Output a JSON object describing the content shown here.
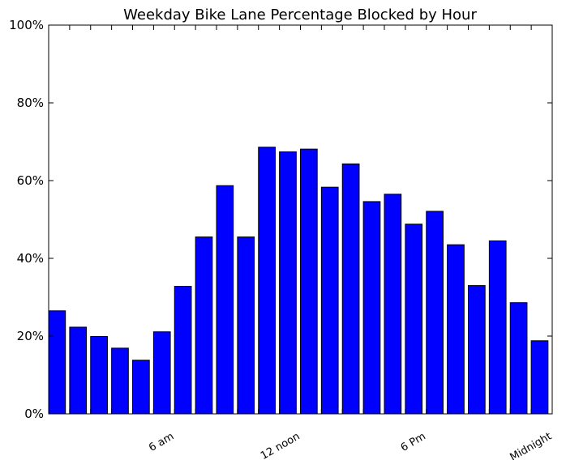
{
  "chart_data": {
    "type": "bar",
    "title": "Weekday Bike Lane Percentage Blocked by Hour",
    "xlabel": "",
    "ylabel": "",
    "ylim": [
      0,
      100
    ],
    "yticks": [
      {
        "value": 0,
        "label": "0%"
      },
      {
        "value": 20,
        "label": "20%"
      },
      {
        "value": 40,
        "label": "40%"
      },
      {
        "value": 60,
        "label": "60%"
      },
      {
        "value": 80,
        "label": "80%"
      },
      {
        "value": 100,
        "label": "100%"
      }
    ],
    "xticks": [
      {
        "hour": 6,
        "label": "6 am"
      },
      {
        "hour": 12,
        "label": "12 noon"
      },
      {
        "hour": 18,
        "label": "6 Pm"
      },
      {
        "hour": 24,
        "label": "Midnight"
      }
    ],
    "hours": [
      0,
      1,
      2,
      3,
      4,
      5,
      6,
      7,
      8,
      9,
      10,
      11,
      12,
      13,
      14,
      15,
      16,
      17,
      18,
      19,
      20,
      21,
      22,
      23
    ],
    "values": [
      26.5,
      22.3,
      19.9,
      16.9,
      13.8,
      21.1,
      32.8,
      45.5,
      58.7,
      45.5,
      68.6,
      67.4,
      68.1,
      58.3,
      64.3,
      54.6,
      56.5,
      48.8,
      52.1,
      43.5,
      33.0,
      44.5,
      28.6,
      18.8
    ],
    "bar_color": "#0000ff",
    "edge_color": "#000000",
    "grid": false,
    "legend": "none"
  }
}
